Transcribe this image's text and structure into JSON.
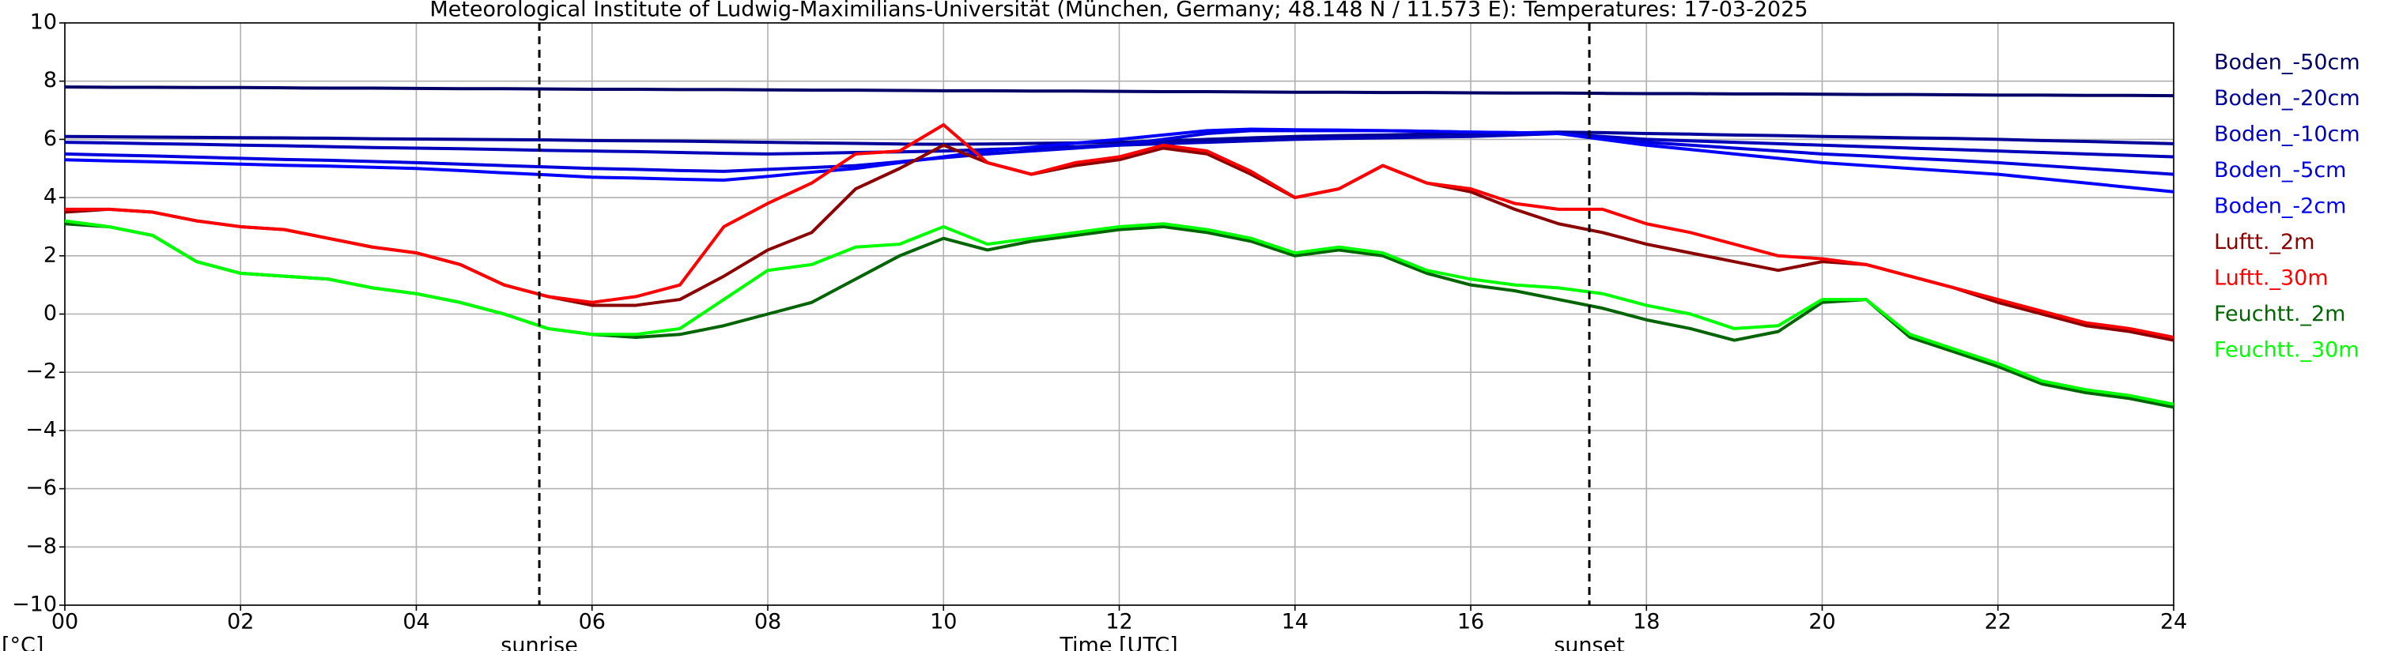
{
  "chart_data": {
    "type": "line",
    "title": "Meteorological Institute of Ludwig-Maximilians-Universität (München, Germany; 48.148 N / 11.573 E):  Temperatures: 17-03-2025",
    "xlabel": "Time [UTC]",
    "ylabel": "[°C]",
    "xlim": [
      0,
      24
    ],
    "ylim": [
      -10,
      10
    ],
    "grid": true,
    "legend": "outside right",
    "xticks": [
      {
        "value": 0,
        "label": "00"
      },
      {
        "value": 2,
        "label": "02"
      },
      {
        "value": 4,
        "label": "04"
      },
      {
        "value": 6,
        "label": "06"
      },
      {
        "value": 8,
        "label": "08"
      },
      {
        "value": 10,
        "label": "10"
      },
      {
        "value": 12,
        "label": "12"
      },
      {
        "value": 14,
        "label": "14"
      },
      {
        "value": 16,
        "label": "16"
      },
      {
        "value": 18,
        "label": "18"
      },
      {
        "value": 20,
        "label": "20"
      },
      {
        "value": 22,
        "label": "22"
      },
      {
        "value": 24,
        "label": "24"
      }
    ],
    "yticks": [
      {
        "value": -10,
        "label": "−10"
      },
      {
        "value": -8,
        "label": "−8"
      },
      {
        "value": -6,
        "label": "−6"
      },
      {
        "value": -4,
        "label": "−4"
      },
      {
        "value": -2,
        "label": "−2"
      },
      0,
      2,
      4,
      6,
      8,
      10
    ],
    "annotations": [
      {
        "text": "sunrise",
        "x": 5.4
      },
      {
        "text": "sunset",
        "x": 17.35
      }
    ],
    "x": [
      0,
      0.5,
      1,
      1.5,
      2,
      2.5,
      3,
      3.5,
      4,
      4.5,
      5,
      5.5,
      6,
      6.5,
      7,
      7.5,
      8,
      8.5,
      9,
      9.5,
      10,
      10.5,
      11,
      11.5,
      12,
      12.5,
      13,
      13.5,
      14,
      14.5,
      15,
      15.5,
      16,
      16.5,
      17,
      17.5,
      18,
      18.5,
      19,
      19.5,
      20,
      20.5,
      21,
      21.5,
      22,
      22.5,
      23,
      23.5,
      24
    ],
    "series": [
      {
        "name": "Boden_-50cm",
        "color": "#000066",
        "values": [
          7.8,
          7.79,
          7.79,
          7.78,
          7.78,
          7.77,
          7.76,
          7.76,
          7.75,
          7.74,
          7.74,
          7.73,
          7.72,
          7.72,
          7.71,
          7.71,
          7.7,
          7.69,
          7.69,
          7.68,
          7.67,
          7.67,
          7.66,
          7.66,
          7.65,
          7.64,
          7.64,
          7.63,
          7.62,
          7.62,
          7.61,
          7.61,
          7.6,
          7.59,
          7.59,
          7.58,
          7.57,
          7.57,
          7.56,
          7.56,
          7.55,
          7.54,
          7.54,
          7.53,
          7.52,
          7.52,
          7.51,
          7.51,
          7.5
        ]
      },
      {
        "name": "Boden_-20cm",
        "color": "#000099",
        "values": [
          6.1,
          6.09,
          6.08,
          6.07,
          6.06,
          6.05,
          6.04,
          6.02,
          6.01,
          6.0,
          5.99,
          5.98,
          5.96,
          5.95,
          5.94,
          5.92,
          5.9,
          5.88,
          5.86,
          5.84,
          5.83,
          5.84,
          5.86,
          5.88,
          5.9,
          5.95,
          6.0,
          6.05,
          6.1,
          6.13,
          6.15,
          6.18,
          6.2,
          6.22,
          6.25,
          6.23,
          6.2,
          6.18,
          6.15,
          6.13,
          6.1,
          6.08,
          6.05,
          6.03,
          6.0,
          5.96,
          5.93,
          5.89,
          5.85
        ]
      },
      {
        "name": "Boden_-10cm",
        "color": "#0000bb",
        "values": [
          5.9,
          5.88,
          5.85,
          5.83,
          5.8,
          5.78,
          5.75,
          5.72,
          5.7,
          5.68,
          5.65,
          5.62,
          5.6,
          5.58,
          5.55,
          5.52,
          5.5,
          5.52,
          5.55,
          5.57,
          5.6,
          5.65,
          5.7,
          5.75,
          5.8,
          5.85,
          5.9,
          5.95,
          6.0,
          6.03,
          6.05,
          6.08,
          6.1,
          6.15,
          6.2,
          6.1,
          6.0,
          5.95,
          5.9,
          5.85,
          5.8,
          5.75,
          5.7,
          5.65,
          5.6,
          5.55,
          5.5,
          5.45,
          5.4
        ]
      },
      {
        "name": "Boden_-5cm",
        "color": "#0000dd",
        "values": [
          5.5,
          5.46,
          5.43,
          5.39,
          5.35,
          5.31,
          5.28,
          5.24,
          5.2,
          5.15,
          5.1,
          5.05,
          5.0,
          4.97,
          4.93,
          4.9,
          4.97,
          5.03,
          5.1,
          5.23,
          5.37,
          5.5,
          5.6,
          5.7,
          5.8,
          6.0,
          6.2,
          6.3,
          6.3,
          6.3,
          6.3,
          6.28,
          6.25,
          6.23,
          6.2,
          6.05,
          5.9,
          5.8,
          5.7,
          5.6,
          5.5,
          5.43,
          5.35,
          5.28,
          5.2,
          5.1,
          5.0,
          4.9,
          4.8
        ]
      },
      {
        "name": "Boden_-2cm",
        "color": "#0000ff",
        "values": [
          5.3,
          5.26,
          5.23,
          5.19,
          5.15,
          5.11,
          5.08,
          5.04,
          5.0,
          4.93,
          4.85,
          4.78,
          4.7,
          4.67,
          4.63,
          4.6,
          4.73,
          4.87,
          5.0,
          5.2,
          5.4,
          5.6,
          5.73,
          5.87,
          6.0,
          6.15,
          6.3,
          6.35,
          6.33,
          6.32,
          6.3,
          6.28,
          6.25,
          6.23,
          6.2,
          6.0,
          5.8,
          5.65,
          5.5,
          5.35,
          5.2,
          5.1,
          5.0,
          4.9,
          4.8,
          4.65,
          4.5,
          4.35,
          4.2
        ]
      },
      {
        "name": "Luftt._2m",
        "color": "#8b0000",
        "values": [
          3.5,
          3.6,
          3.5,
          3.2,
          3.0,
          2.9,
          2.6,
          2.3,
          2.1,
          1.7,
          1.0,
          0.6,
          0.3,
          0.3,
          0.5,
          1.3,
          2.2,
          2.8,
          4.3,
          5.0,
          5.8,
          5.2,
          4.8,
          5.1,
          5.3,
          5.7,
          5.5,
          4.8,
          4.0,
          4.3,
          5.1,
          4.5,
          4.2,
          3.6,
          3.1,
          2.8,
          2.4,
          2.1,
          1.8,
          1.5,
          1.8,
          1.7,
          1.3,
          0.9,
          0.4,
          0.0,
          -0.4,
          -0.6,
          -0.9
        ]
      },
      {
        "name": "Luftt._30m",
        "color": "#ff0000",
        "values": [
          3.6,
          3.6,
          3.5,
          3.2,
          3.0,
          2.9,
          2.6,
          2.3,
          2.1,
          1.7,
          1.0,
          0.6,
          0.4,
          0.6,
          1.0,
          3.0,
          3.8,
          4.5,
          5.5,
          5.6,
          6.5,
          5.2,
          4.8,
          5.2,
          5.4,
          5.8,
          5.6,
          4.9,
          4.0,
          4.3,
          5.1,
          4.5,
          4.3,
          3.8,
          3.6,
          3.6,
          3.1,
          2.8,
          2.4,
          2.0,
          1.9,
          1.7,
          1.3,
          0.9,
          0.5,
          0.1,
          -0.3,
          -0.5,
          -0.8
        ]
      },
      {
        "name": "Feuchtt._2m",
        "color": "#006400",
        "values": [
          3.1,
          3.0,
          2.7,
          1.8,
          1.4,
          1.3,
          1.2,
          0.9,
          0.7,
          0.4,
          0.0,
          -0.5,
          -0.7,
          -0.8,
          -0.7,
          -0.4,
          0.0,
          0.4,
          1.2,
          2.0,
          2.6,
          2.2,
          2.5,
          2.7,
          2.9,
          3.0,
          2.8,
          2.5,
          2.0,
          2.2,
          2.0,
          1.4,
          1.0,
          0.8,
          0.5,
          0.2,
          -0.2,
          -0.5,
          -0.9,
          -0.6,
          0.4,
          0.5,
          -0.8,
          -1.3,
          -1.8,
          -2.4,
          -2.7,
          -2.9,
          -3.2
        ]
      },
      {
        "name": "Feuchtt._30m",
        "color": "#00ff00",
        "values": [
          3.2,
          3.0,
          2.7,
          1.8,
          1.4,
          1.3,
          1.2,
          0.9,
          0.7,
          0.4,
          0.0,
          -0.5,
          -0.7,
          -0.7,
          -0.5,
          0.5,
          1.5,
          1.7,
          2.3,
          2.4,
          3.0,
          2.4,
          2.6,
          2.8,
          3.0,
          3.1,
          2.9,
          2.6,
          2.1,
          2.3,
          2.1,
          1.5,
          1.2,
          1.0,
          0.9,
          0.7,
          0.3,
          0.0,
          -0.5,
          -0.4,
          0.5,
          0.5,
          -0.7,
          -1.2,
          -1.7,
          -2.3,
          -2.6,
          -2.8,
          -3.1
        ]
      }
    ]
  }
}
